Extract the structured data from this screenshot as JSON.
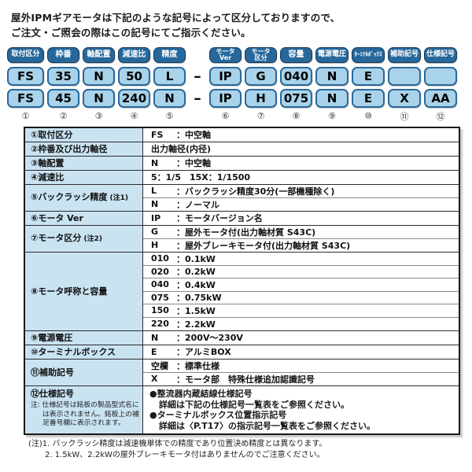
{
  "intro": {
    "line1": "屋外IPMギアモータは下記のような記号によって区分しておりますので、",
    "line2": "ご注文・ご照会の際はこの記号にてご指示ください。"
  },
  "diagram": {
    "dash": "–",
    "columns": [
      {
        "header": "取付区分",
        "row1": "FS",
        "row2": "FS",
        "num": "①"
      },
      {
        "header": "枠番",
        "row1": "35",
        "row2": "45",
        "num": "②"
      },
      {
        "header": "軸配置",
        "row1": "N",
        "row2": "N",
        "num": "③"
      },
      {
        "header": "減速比",
        "row1": "50",
        "row2": "240",
        "num": "④"
      },
      {
        "header": "精度",
        "row1": "L",
        "row2": "N",
        "num": "⑤"
      },
      {
        "header": [
          "モータ",
          "Ver"
        ],
        "row1": "IP",
        "row2": "IP",
        "num": "⑥"
      },
      {
        "header": [
          "モータ",
          "区分"
        ],
        "row1": "G",
        "row2": "H",
        "num": "⑦"
      },
      {
        "header": "容量",
        "row1": "040",
        "row2": "075",
        "num": "⑧"
      },
      {
        "header": "電源電圧",
        "row1": "N",
        "row2": "N",
        "num": "⑨"
      },
      {
        "header": "ﾀｰﾐﾅﾙﾎﾞｯｸｽ",
        "row1": "E",
        "row2": "E",
        "num": "⑩"
      },
      {
        "header": "補助記号",
        "row1": "",
        "row2": "X",
        "num": "⑪"
      },
      {
        "header": "仕様記号",
        "row1": "",
        "row2": "AA",
        "num": "⑫"
      }
    ]
  },
  "table": {
    "colon": "：",
    "groups": [
      {
        "num": "①",
        "label": "取付区分",
        "rows": [
          {
            "code": "FS",
            "desc": "中空軸"
          }
        ]
      },
      {
        "num": "②",
        "label": "枠番及び出力軸径",
        "rows": [
          {
            "text": "出力軸径(内径)"
          }
        ]
      },
      {
        "num": "③",
        "label": "軸配置",
        "rows": [
          {
            "code": "N",
            "desc": "中空軸"
          }
        ]
      },
      {
        "num": "④",
        "label": "減速比",
        "rows": [
          {
            "text": "5：1/5　15X：1/1500"
          }
        ]
      },
      {
        "num": "⑤",
        "label": "バックラッシ精度",
        "label_note": "(注1)",
        "rows": [
          {
            "code": "L",
            "desc": "バックラッシ精度30分(一部機種除く)"
          },
          {
            "code": "N",
            "desc": "ノーマル"
          }
        ]
      },
      {
        "num": "⑥",
        "label": "モータ Ver",
        "rows": [
          {
            "code": "IP",
            "desc": "モータバージョン名"
          }
        ]
      },
      {
        "num": "⑦",
        "label": "モータ区分",
        "label_note": "(注2)",
        "rows": [
          {
            "code": "G",
            "desc": "屋外モータ付(出力軸材質 S43C)"
          },
          {
            "code": "H",
            "desc": "屋外ブレーキモータ付(出力軸材質 S43C)"
          }
        ]
      },
      {
        "num": "⑧",
        "label": "モータ呼称と容量",
        "rows": [
          {
            "code": "010",
            "desc": "0.1kW"
          },
          {
            "code": "020",
            "desc": "0.2kW"
          },
          {
            "code": "040",
            "desc": "0.4kW"
          },
          {
            "code": "075",
            "desc": "0.75kW"
          },
          {
            "code": "150",
            "desc": "1.5kW"
          },
          {
            "code": "220",
            "desc": "2.2kW"
          }
        ]
      },
      {
        "num": "⑨",
        "label": "電源電圧",
        "rows": [
          {
            "code": "N",
            "desc": "200V～230V"
          }
        ]
      },
      {
        "num": "⑩",
        "label": "ターミナルボックス",
        "rows": [
          {
            "code": "E",
            "desc": "アルミBOX"
          }
        ]
      },
      {
        "num": "⑪",
        "label": "補助記号",
        "rows": [
          {
            "code": "空欄",
            "desc": "標準仕様"
          },
          {
            "code": "X",
            "desc": "モータ部　特殊仕様追加認識記号"
          }
        ]
      },
      {
        "num": "⑫",
        "label": "仕様記号",
        "cell_note": "注: 仕様記号は銘板の製品型式名には表示されません。銘板上の補足番号欄に表示されます。",
        "bullets": [
          {
            "title": "●整流器内蔵結線仕様記号",
            "detail": "詳細は下記の仕様記号一覧表をご参照ください。"
          },
          {
            "title": "●ターミナルボックス位置指示記号",
            "detail": "詳細は〈P.T17〉の指示記号一覧表をご参照ください。"
          }
        ]
      }
    ]
  },
  "notes": {
    "line1": "(注)1. バックラッシ精度は減速機単体での精度であり位置決め精度とは異なります。",
    "line2": "2. 1.5kW、2.2kWの屋外ブレーキモータ付はありませんのでご注意ください。"
  }
}
